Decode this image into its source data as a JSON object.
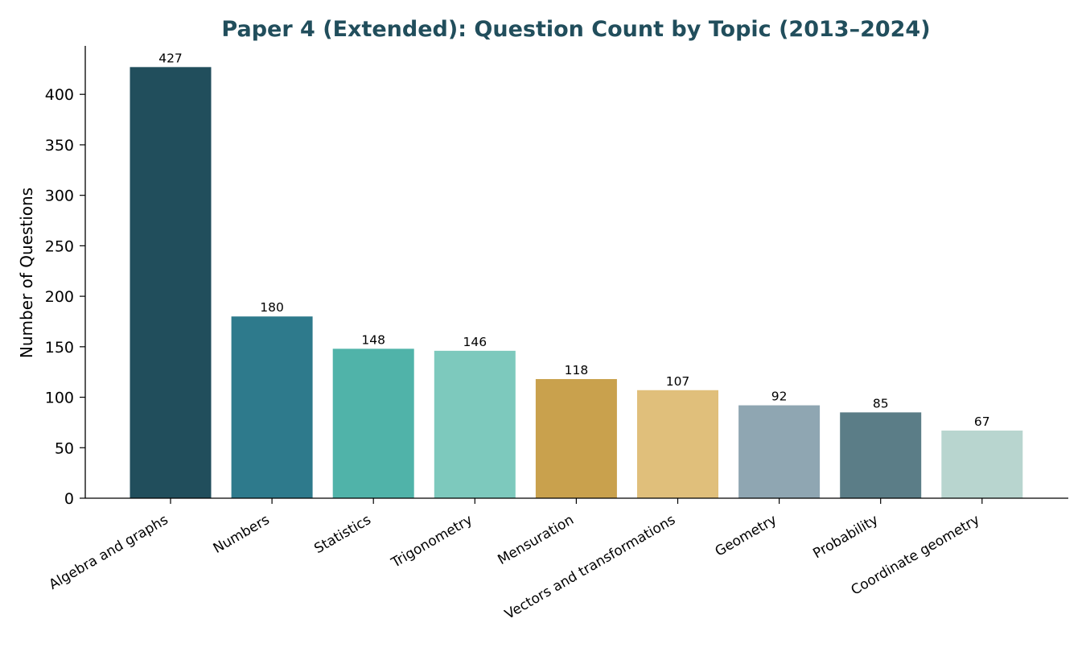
{
  "chart_data": {
    "type": "bar",
    "title": "Paper 4 (Extended): Question Count by Topic (2013–2024)",
    "xlabel": "",
    "ylabel": "Number of Questions",
    "ylim": [
      0,
      448
    ],
    "yticks": [
      0,
      50,
      100,
      150,
      200,
      250,
      300,
      350,
      400
    ],
    "grid": false,
    "legend": "none",
    "categories": [
      "Algebra and graphs",
      "Numbers",
      "Statistics",
      "Trigonometry",
      "Mensuration",
      "Vectors and transformations",
      "Geometry",
      "Probability",
      "Coordinate geometry"
    ],
    "values": [
      427,
      180,
      148,
      146,
      118,
      107,
      92,
      85,
      67
    ],
    "bar_colors": [
      "#214e5c",
      "#2e7a8c",
      "#50b3a9",
      "#7dc9bd",
      "#c9a14d",
      "#e0bf7b",
      "#8fa6b2",
      "#5b7d87",
      "#b8d5cf"
    ],
    "title_color": "#214e5c"
  }
}
